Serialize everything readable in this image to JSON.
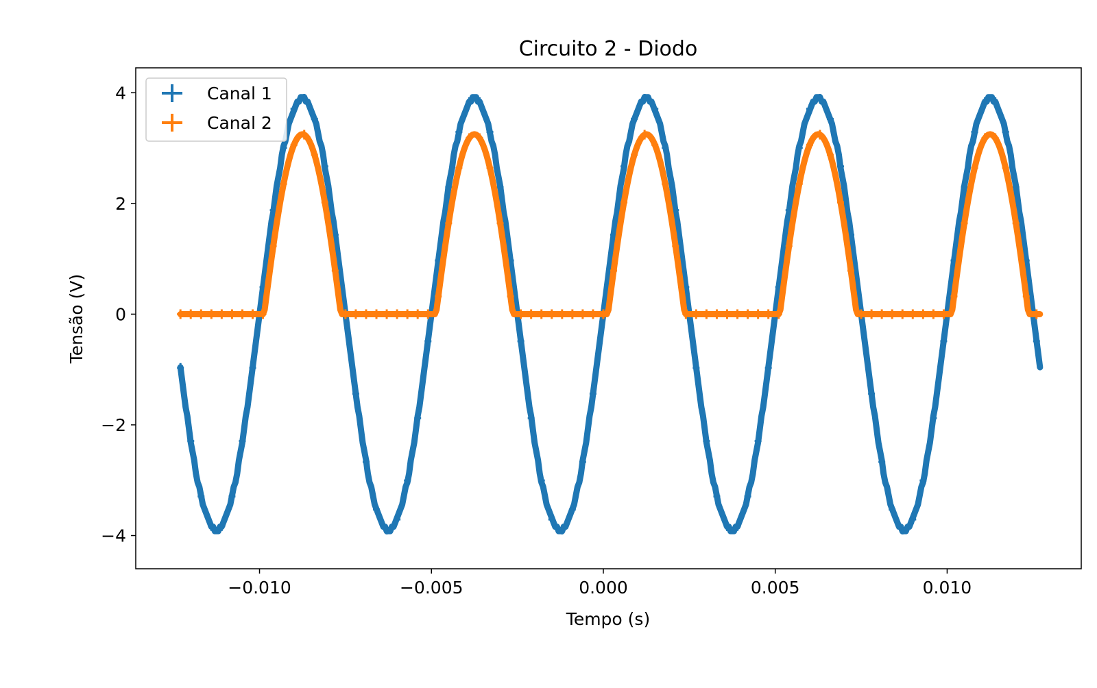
{
  "chart_data": {
    "type": "scatter",
    "title": "Circuito 2 - Diodo",
    "xlabel": "Tempo (s)",
    "ylabel": "Tensão (V)",
    "xlim": [
      -0.0136,
      0.0139
    ],
    "ylim": [
      -4.6,
      4.45
    ],
    "x_ticks": [
      -0.01,
      -0.005,
      0.0,
      0.005,
      0.01
    ],
    "x_tick_labels": [
      "−0.010",
      "−0.005",
      "0.000",
      "0.005",
      "0.010"
    ],
    "y_ticks": [
      -4,
      -2,
      0,
      2,
      4
    ],
    "y_tick_labels": [
      "−4",
      "−2",
      "0",
      "2",
      "4"
    ],
    "grid": false,
    "legend_position": "upper-left",
    "x_range": [
      -0.0123,
      0.0127
    ],
    "series": [
      {
        "name": "Canal 1",
        "color": "#1f77b4",
        "marker": "plus-errorbar",
        "waveform": "sine",
        "amplitude": 3.9,
        "frequency_hz": 200,
        "zero_crossing_rising_s": -0.01
      },
      {
        "name": "Canal 2",
        "color": "#ff7f0e",
        "marker": "plus-errorbar",
        "waveform": "half-wave-rectified-sine",
        "amplitude": 3.9,
        "diode_drop_v": 0.65,
        "frequency_hz": 200,
        "zero_crossing_rising_s": -0.01
      }
    ]
  }
}
